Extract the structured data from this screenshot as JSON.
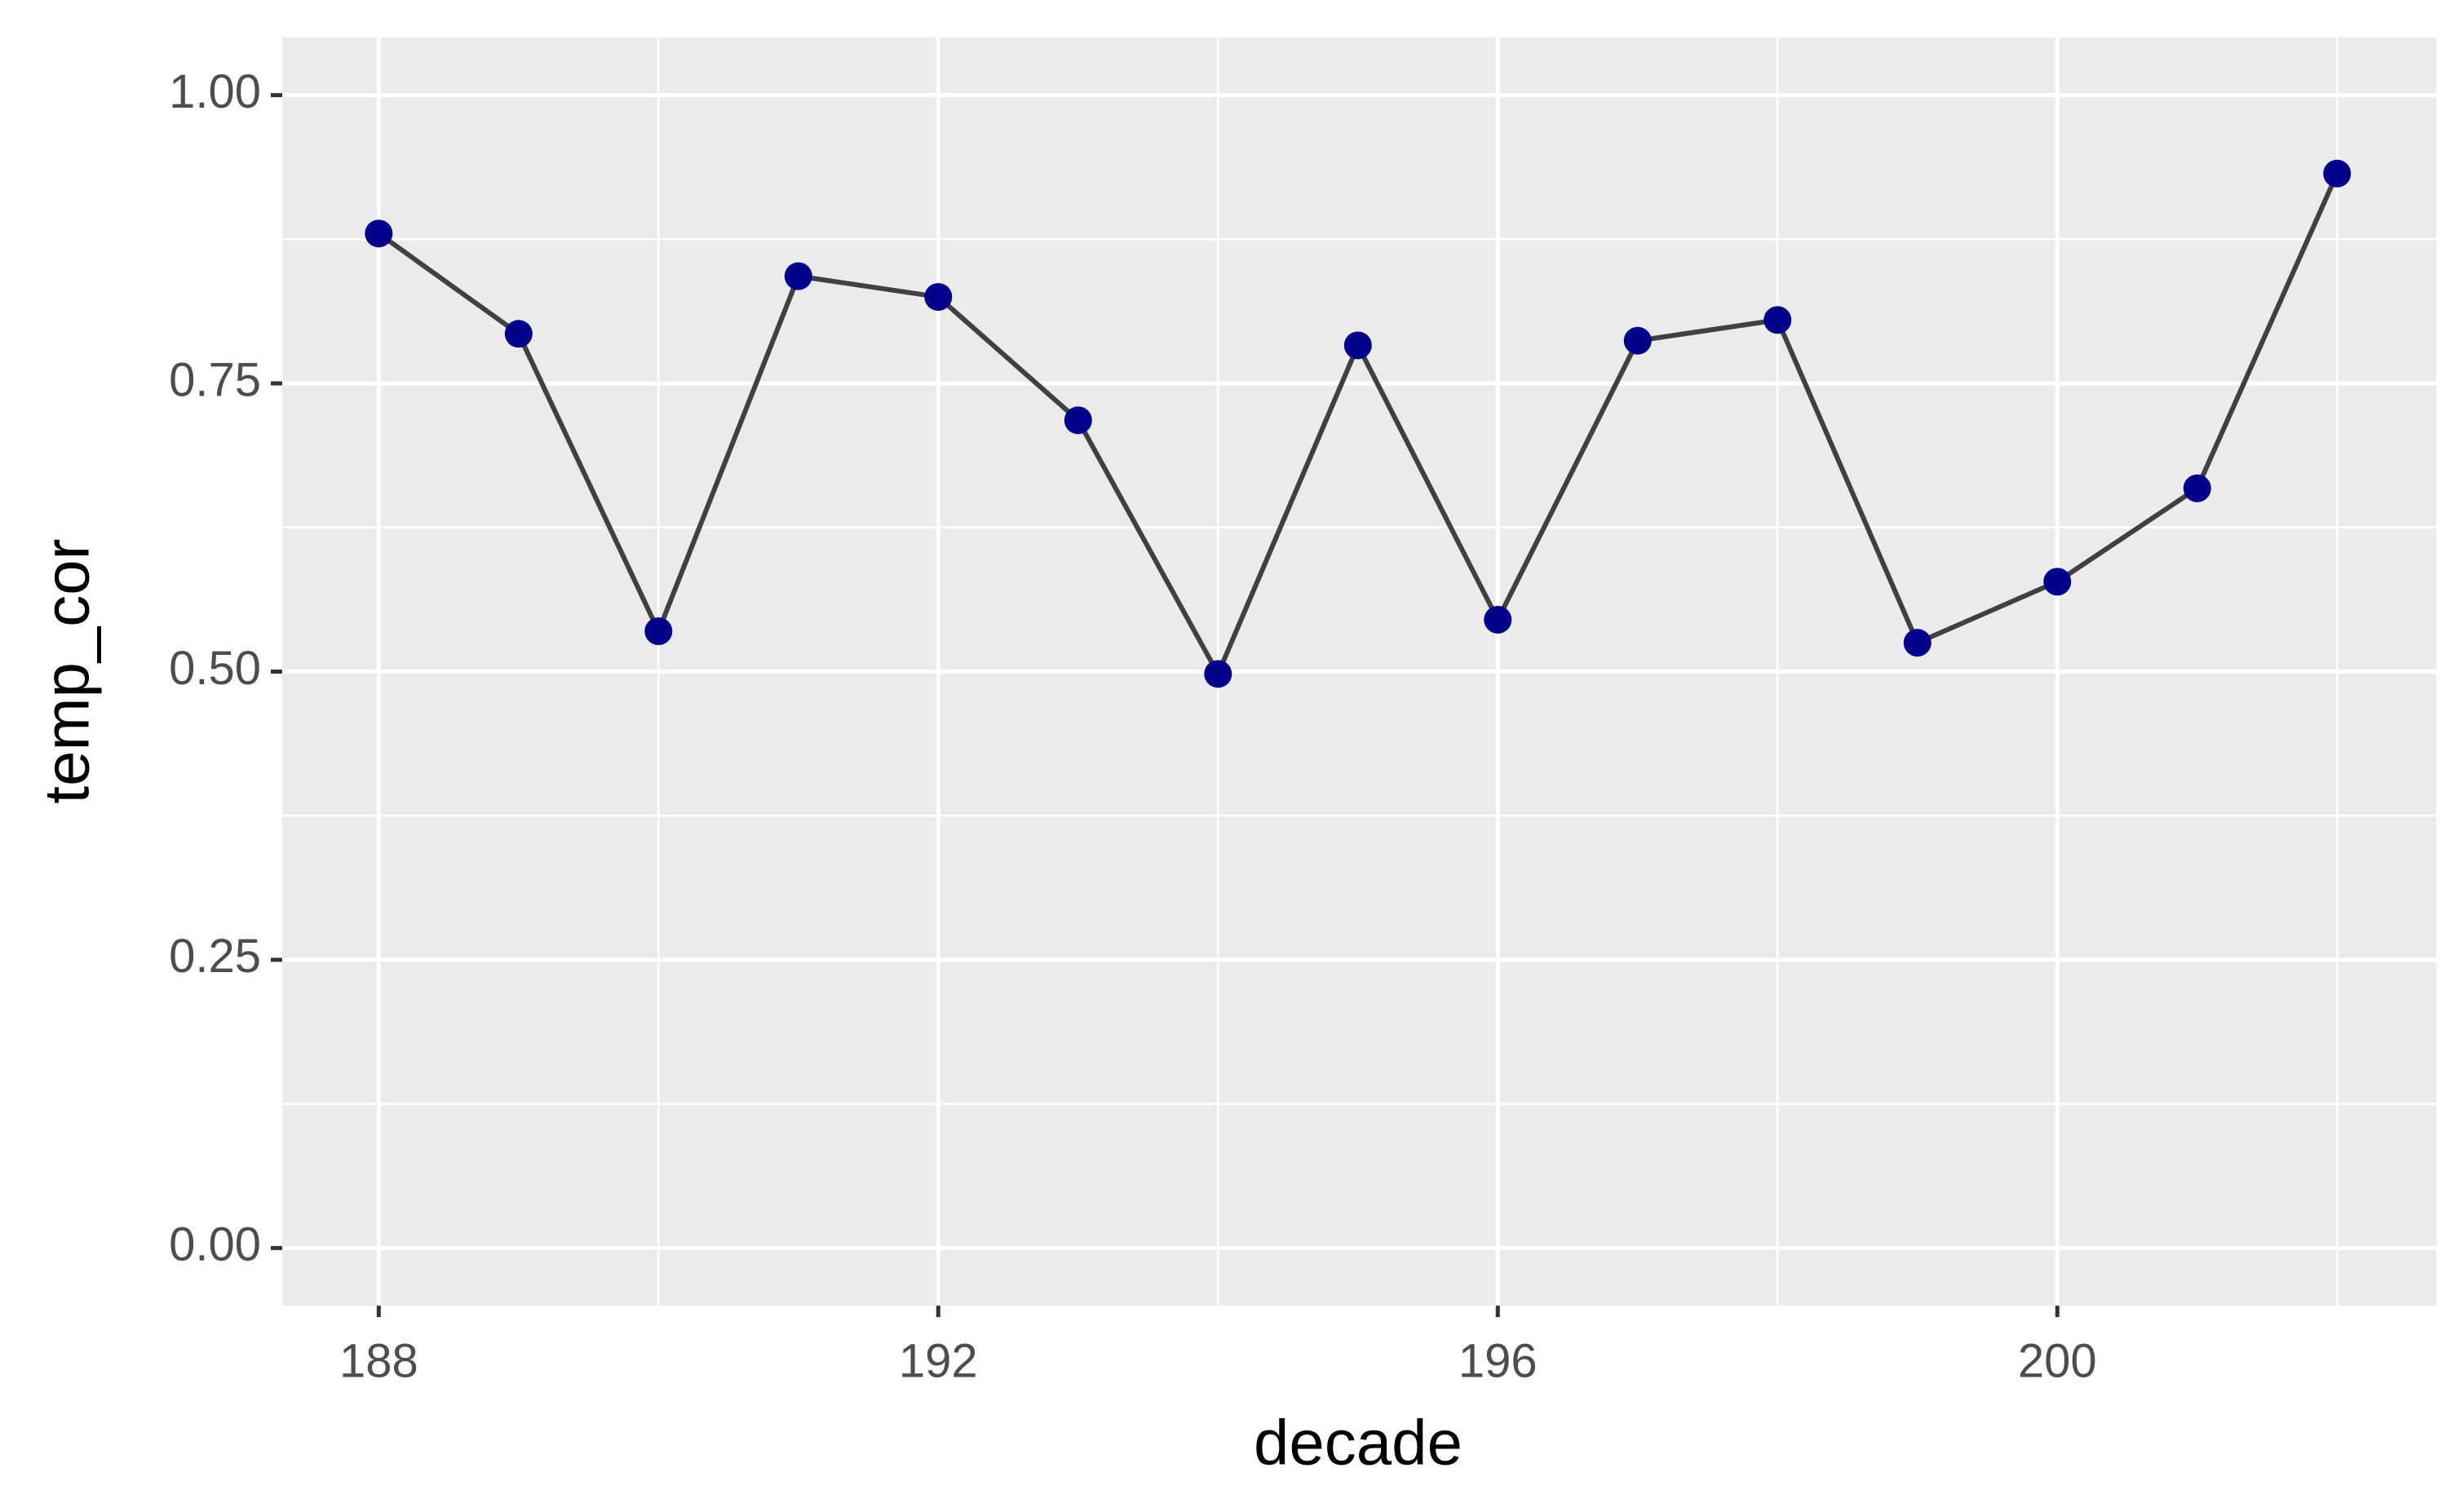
{
  "chart_data": {
    "type": "line",
    "x_label": "decade",
    "y_label": "temp_cor",
    "x": [
      188,
      189,
      190,
      191,
      192,
      193,
      194,
      195,
      196,
      197,
      198,
      199,
      200,
      201,
      202
    ],
    "series": [
      {
        "color": "#00008b",
        "line_color": "#404040",
        "values": [
          0.88,
          0.793,
          0.535,
          0.843,
          0.825,
          0.718,
          0.498,
          0.783,
          0.545,
          0.787,
          0.805,
          0.525,
          0.578,
          0.659,
          0.932
        ]
      }
    ],
    "xlim": [
      187.31,
      202.71
    ],
    "ylim": [
      -0.05,
      1.05
    ],
    "xticks": [
      188,
      192,
      196,
      200
    ],
    "yticks": [
      {
        "value": 0,
        "label": "0.00"
      },
      {
        "value": 0.25,
        "label": "0.25"
      },
      {
        "value": 0.5,
        "label": "0.50"
      },
      {
        "value": 0.75,
        "label": "0.75"
      },
      {
        "value": 1,
        "label": "1.00"
      }
    ],
    "minor_xticks": [
      190,
      194,
      198,
      202
    ],
    "minor_yticks": [
      0.125,
      0.375,
      0.625,
      0.875
    ],
    "grid": true
  }
}
